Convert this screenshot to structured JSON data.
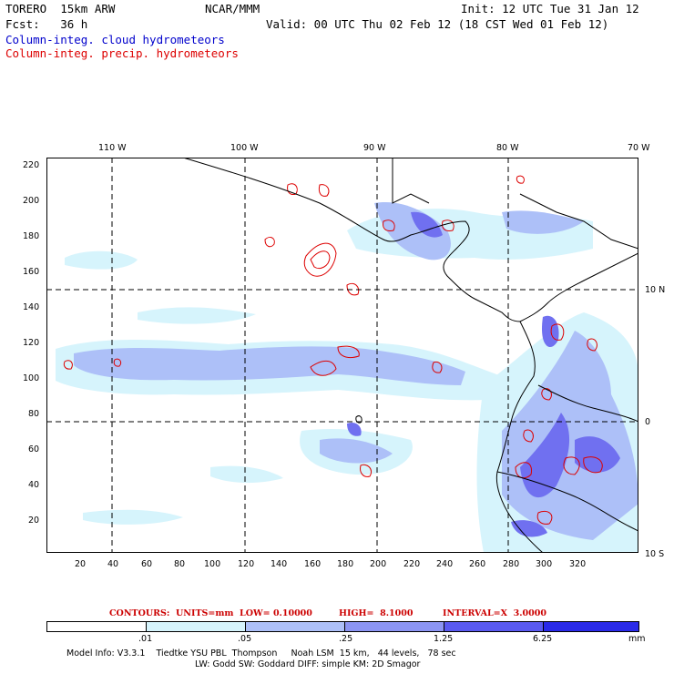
{
  "header": {
    "model_name": "TORERO  15km ARW",
    "org": "NCAR/MMM",
    "init": "Init: 12 UTC Tue 31 Jan 12",
    "fcst": "Fcst:   36 h",
    "valid": "Valid: 00 UTC Thu 02 Feb 12 (18 CST Wed 01 Feb 12)",
    "field_cloud": "Column-integ. cloud hydrometeors",
    "field_precip": "Column-integ. precip. hydrometeors"
  },
  "map": {
    "top_longitudes": [
      "110 W",
      "100 W",
      "90 W",
      "80 W",
      "70 W"
    ],
    "right_latitudes": [
      "10 N",
      "0",
      "10 S"
    ],
    "y_ticks": [
      "220",
      "200",
      "180",
      "160",
      "140",
      "120",
      "100",
      "80",
      "60",
      "40",
      "20"
    ],
    "x_ticks": [
      "20",
      "40",
      "60",
      "80",
      "100",
      "120",
      "140",
      "160",
      "180",
      "200",
      "220",
      "240",
      "260",
      "280",
      "300",
      "320"
    ]
  },
  "contour_info": {
    "units": "CONTOURS:  UNITS=mm  LOW= 0.10000",
    "high": "HIGH=  8.1000",
    "interval": "INTERVAL=X  3.0000"
  },
  "legend": {
    "ticks": [
      ".01",
      ".05",
      ".25",
      "1.25",
      "6.25"
    ],
    "units": "mm",
    "colors": [
      "#ffffff",
      "#d6f4fc",
      "#adc0f8",
      "#8c95f3",
      "#5a5af0",
      "#2a2ae8"
    ]
  },
  "footer": {
    "line1": "Model Info: V3.3.1    Tiedtke YSU PBL  Thompson     Noah LSM  15 km,   44 levels,   78 sec",
    "line2": "LW: Godd SW: Goddard DIFF: simple KM: 2D Smagor"
  }
}
